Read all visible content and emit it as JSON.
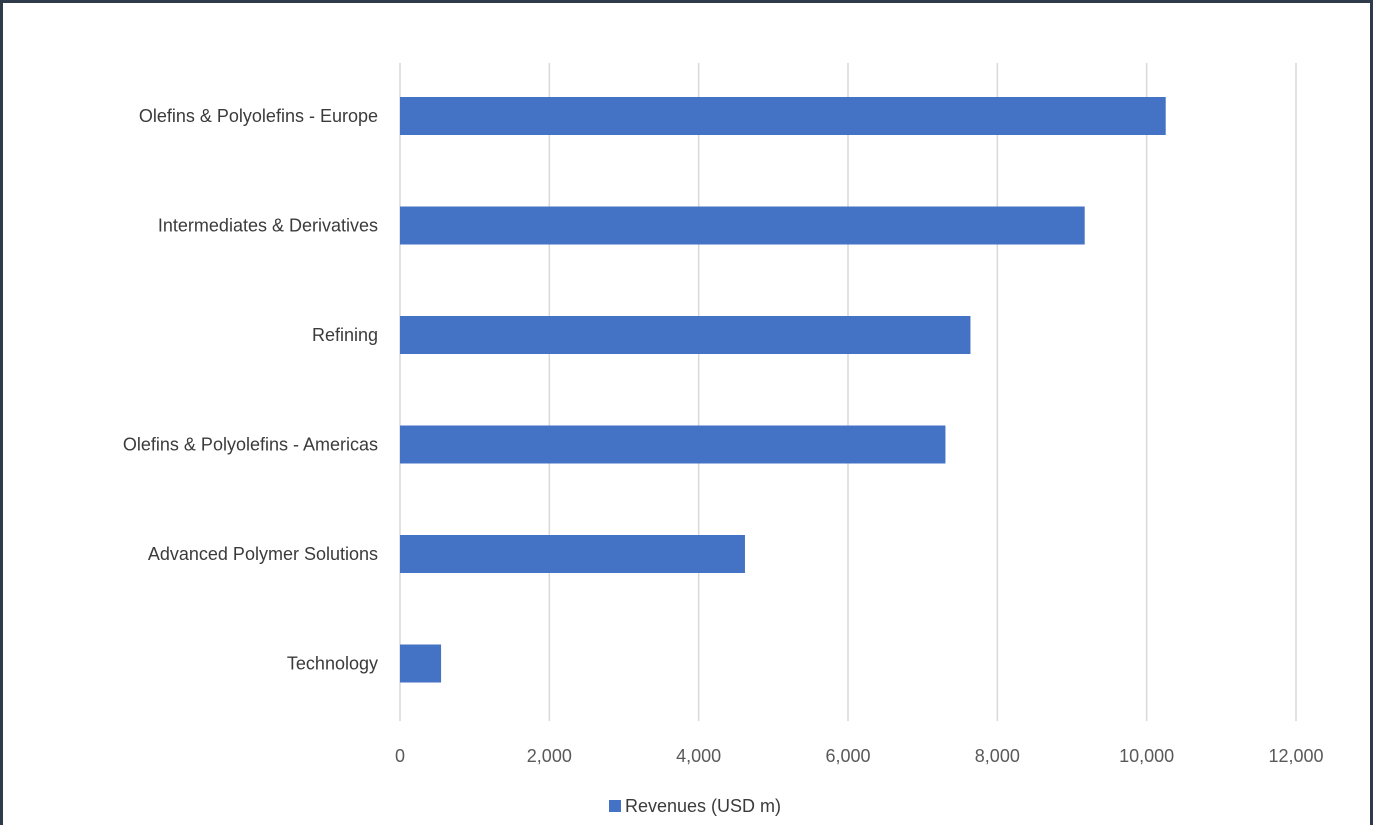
{
  "chart_data": {
    "type": "bar",
    "orientation": "horizontal",
    "categories": [
      "Olefins & Polyolefins - Europe",
      "Intermediates & Derivatives",
      "Refining",
      "Olefins & Polyolefins - Americas",
      "Advanced Polymer Solutions",
      "Technology"
    ],
    "series": [
      {
        "name": "Revenues (USD m)",
        "color": "#4472c4",
        "values": [
          10255,
          9170,
          7640,
          7305,
          4620,
          550
        ]
      }
    ],
    "title": "",
    "xlabel": "",
    "ylabel": "",
    "xlim": [
      0,
      12000
    ],
    "x_ticks": [
      0,
      2000,
      4000,
      6000,
      8000,
      10000,
      12000
    ],
    "x_tick_labels": [
      "0",
      "2,000",
      "4,000",
      "6,000",
      "8,000",
      "10,000",
      "12,000"
    ],
    "grid": "vertical",
    "gridline_color": "#d9d9d9",
    "legend": "bottom"
  }
}
